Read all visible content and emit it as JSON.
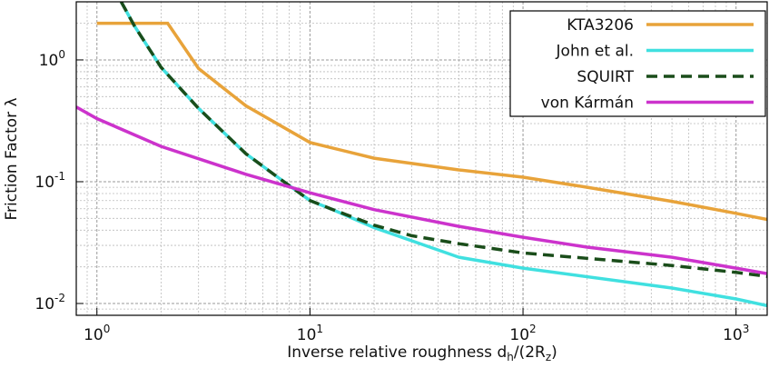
{
  "chart_data": {
    "type": "line",
    "x_label_parts": [
      {
        "text": "Inverse relative roughness d"
      },
      {
        "text": "h",
        "sub": true
      },
      {
        "text": "/(2R"
      },
      {
        "text": "z",
        "sub": true
      },
      {
        "text": ")"
      }
    ],
    "y_label": "Friction Factor λ",
    "xlog": true,
    "ylog": true,
    "grid": true,
    "legend": "upper right",
    "xlim": [
      0.8,
      1400
    ],
    "ylim": [
      0.008,
      3
    ],
    "xticks": [
      {
        "value": 1,
        "label": "10",
        "exponent": "0"
      },
      {
        "value": 10,
        "label": "10",
        "exponent": "1"
      },
      {
        "value": 100,
        "label": "10",
        "exponent": "2"
      },
      {
        "value": 1000,
        "label": "10",
        "exponent": "3"
      }
    ],
    "yticks": [
      {
        "value": 1,
        "label": "10",
        "exponent": "0"
      },
      {
        "value": 0.1,
        "label": "10",
        "exponent": "-1"
      },
      {
        "value": 0.01,
        "label": "10",
        "exponent": "-2"
      }
    ],
    "series": [
      {
        "name": "KTA3206",
        "color": "#e8a33a",
        "dashed": false,
        "x": [
          1,
          2.15,
          3,
          5,
          10,
          20,
          50,
          100,
          200,
          500,
          1000,
          1400
        ],
        "values": [
          2.0,
          2.0,
          0.85,
          0.42,
          0.21,
          0.156,
          0.125,
          0.109,
          0.09,
          0.069,
          0.055,
          0.049
        ]
      },
      {
        "name": "John et al.",
        "color": "#40e0e0",
        "dashed": false,
        "x": [
          1.3,
          1.5,
          2,
          3,
          5,
          7,
          10,
          12.5,
          20,
          50,
          100,
          500,
          1000,
          1400
        ],
        "values": [
          3.0,
          1.9,
          0.87,
          0.4,
          0.17,
          0.11,
          0.07,
          0.06,
          0.042,
          0.024,
          0.0195,
          0.0134,
          0.0109,
          0.0096
        ]
      },
      {
        "name": "SQUIRT",
        "color": "#1a4d1a",
        "dashed": true,
        "x": [
          1.3,
          1.5,
          2,
          3,
          5,
          7,
          10,
          12.5,
          20,
          30,
          50,
          100,
          500,
          1000,
          1400
        ],
        "values": [
          3.0,
          1.9,
          0.87,
          0.4,
          0.17,
          0.11,
          0.07,
          0.06,
          0.044,
          0.036,
          0.031,
          0.026,
          0.0205,
          0.018,
          0.0167
        ]
      },
      {
        "name": "von Kármán",
        "color": "#cc33cc",
        "dashed": false,
        "x": [
          0.8,
          1,
          2,
          5,
          10,
          20,
          50,
          100,
          200,
          500,
          1000,
          1400
        ],
        "values": [
          0.41,
          0.33,
          0.195,
          0.115,
          0.081,
          0.059,
          0.043,
          0.035,
          0.029,
          0.024,
          0.0195,
          0.0176
        ]
      }
    ]
  }
}
